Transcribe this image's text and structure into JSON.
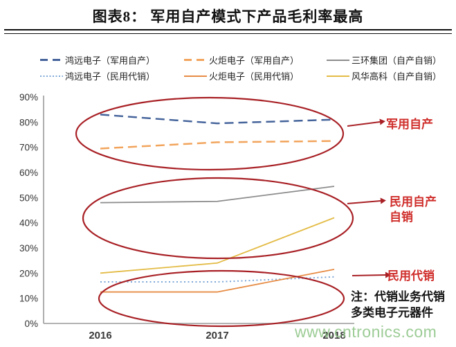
{
  "page": {
    "title": "图表8：  军用自产模式下产品毛利率最高"
  },
  "legend": {
    "items": [
      {
        "label": "鸿远电子（军用自产）",
        "color": "#44639a",
        "style": "dashed"
      },
      {
        "label": "火炬电子（军用自产）",
        "color": "#f2a45c",
        "style": "dashed"
      },
      {
        "label": "三环集团（自产自销）",
        "color": "#8c8c8c",
        "style": "solid"
      },
      {
        "label": "鸿远电子（民用代销）",
        "color": "#7da7d8",
        "style": "dotted"
      },
      {
        "label": "火炬电子（民用代销）",
        "color": "#e78b43",
        "style": "solid"
      },
      {
        "label": "风华高科（自产自销）",
        "color": "#e3bb45",
        "style": "solid"
      }
    ]
  },
  "chart_data": {
    "type": "line",
    "title": "军用自产模式下产品毛利率最高",
    "categories": [
      "2016",
      "2017",
      "2018"
    ],
    "series": [
      {
        "name": "鸿远电子（军用自产）",
        "color": "#44639a",
        "line_style": "dashed",
        "values": [
          83,
          79.5,
          81
        ]
      },
      {
        "name": "火炬电子（军用自产）",
        "color": "#f2a45c",
        "line_style": "dashed",
        "values": [
          69.5,
          72,
          72.5
        ]
      },
      {
        "name": "三环集团（自产自销）",
        "color": "#8c8c8c",
        "line_style": "solid",
        "values": [
          48,
          48.5,
          54.5
        ]
      },
      {
        "name": "鸿远电子（民用代销）",
        "color": "#7da7d8",
        "line_style": "dotted",
        "values": [
          16.5,
          16.5,
          18.5
        ]
      },
      {
        "name": "火炬电子（民用代销）",
        "color": "#e78b43",
        "line_style": "solid",
        "values": [
          12.5,
          12.5,
          21.5
        ]
      },
      {
        "name": "风华高科（自产自销）",
        "color": "#e3bb45",
        "line_style": "solid",
        "values": [
          20,
          24,
          42
        ]
      }
    ],
    "ylabel": "",
    "xlabel": "",
    "ylim": [
      0,
      90
    ],
    "yticks": [
      "0%",
      "10%",
      "20%",
      "30%",
      "40%",
      "50%",
      "60%",
      "70%",
      "80%",
      "90%"
    ],
    "grid": false,
    "legend_position": "top",
    "accent_red": "#a82025",
    "annotations": {
      "military": "军用自产",
      "civil_self_line1": "民用自产",
      "civil_self_line2": "自销",
      "civil_consign": "民用代销",
      "note_line1": "注：代销业务代销",
      "note_line2": "多类电子元器件"
    }
  },
  "watermark": "www.cntronics.com"
}
